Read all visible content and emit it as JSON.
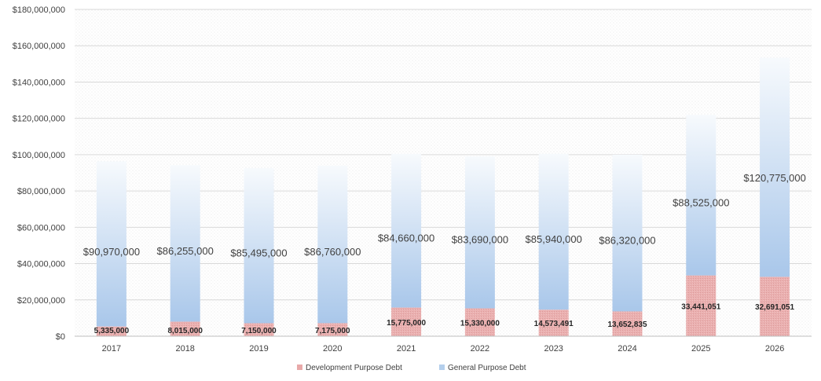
{
  "chart_data": {
    "type": "bar",
    "stacked": true,
    "categories": [
      "2017",
      "2018",
      "2019",
      "2020",
      "2021",
      "2022",
      "2023",
      "2024",
      "2025",
      "2026"
    ],
    "series": [
      {
        "name": "Development Purpose Debt",
        "color": "#e8a9a9",
        "values": [
          5335000,
          8015000,
          7150000,
          7175000,
          15775000,
          15330000,
          14573491,
          13652835,
          33441051,
          32691051
        ],
        "labels": [
          "5,335,000",
          "8,015,000",
          "7,150,000",
          "7,175,000",
          "15,775,000",
          "15,330,000",
          "14,573,491",
          "13,652,835",
          "33,441,051",
          "32,691,051"
        ]
      },
      {
        "name": "General  Purpose Debt",
        "color": "#b4cfec",
        "values": [
          90970000,
          86255000,
          85495000,
          86760000,
          84660000,
          83690000,
          85940000,
          86320000,
          88525000,
          120775000
        ],
        "labels": [
          "$90,970,000",
          "$86,255,000",
          "$85,495,000",
          "$86,760,000",
          "$84,660,000",
          "$83,690,000",
          "$85,940,000",
          "$86,320,000",
          "$88,525,000",
          "$120,775,000"
        ]
      }
    ],
    "yticks": [
      "$0",
      "$20,000,000",
      "$40,000,000",
      "$60,000,000",
      "$80,000,000",
      "$100,000,000",
      "$120,000,000",
      "$140,000,000",
      "$160,000,000",
      "$180,000,000"
    ],
    "ylim": [
      0,
      180000000
    ],
    "grid": true,
    "legend": "bottom",
    "title": "",
    "xlabel": "",
    "ylabel": ""
  }
}
